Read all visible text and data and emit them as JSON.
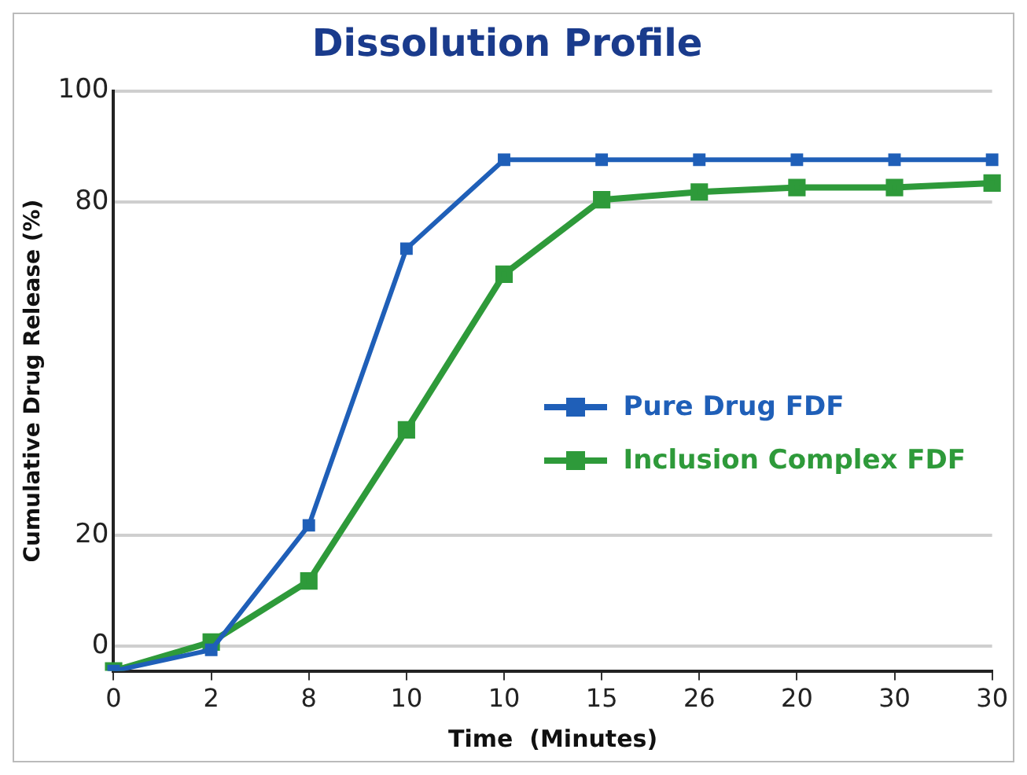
{
  "chart_data": {
    "type": "line",
    "title": "Dissolution Profile",
    "xlabel": "Time  (Minutes)",
    "ylabel": "Cumulative Drug Release (%)",
    "categories": [
      "0",
      "2",
      "8",
      "10",
      "10",
      "15",
      "26",
      "20",
      "30",
      "30"
    ],
    "ylim": [
      -4.4,
      100
    ],
    "yticks": [
      0,
      20,
      80,
      100
    ],
    "grid": "y",
    "legend": "right",
    "marker": "square",
    "line_style": "solid",
    "series": [
      {
        "name": "Pure Drug FDF",
        "color": "#1f5fb8",
        "values": [
          -4.4,
          -0.6,
          21.8,
          71.6,
          87.6,
          87.6,
          87.6,
          87.6,
          87.6,
          87.6
        ]
      },
      {
        "name": "Inclusion Complex FDF",
        "color": "#2e9a3a",
        "values": [
          -4.4,
          0.8,
          11.8,
          39,
          67,
          80.4,
          81.8,
          82.6,
          82.6,
          83.4
        ]
      }
    ]
  }
}
